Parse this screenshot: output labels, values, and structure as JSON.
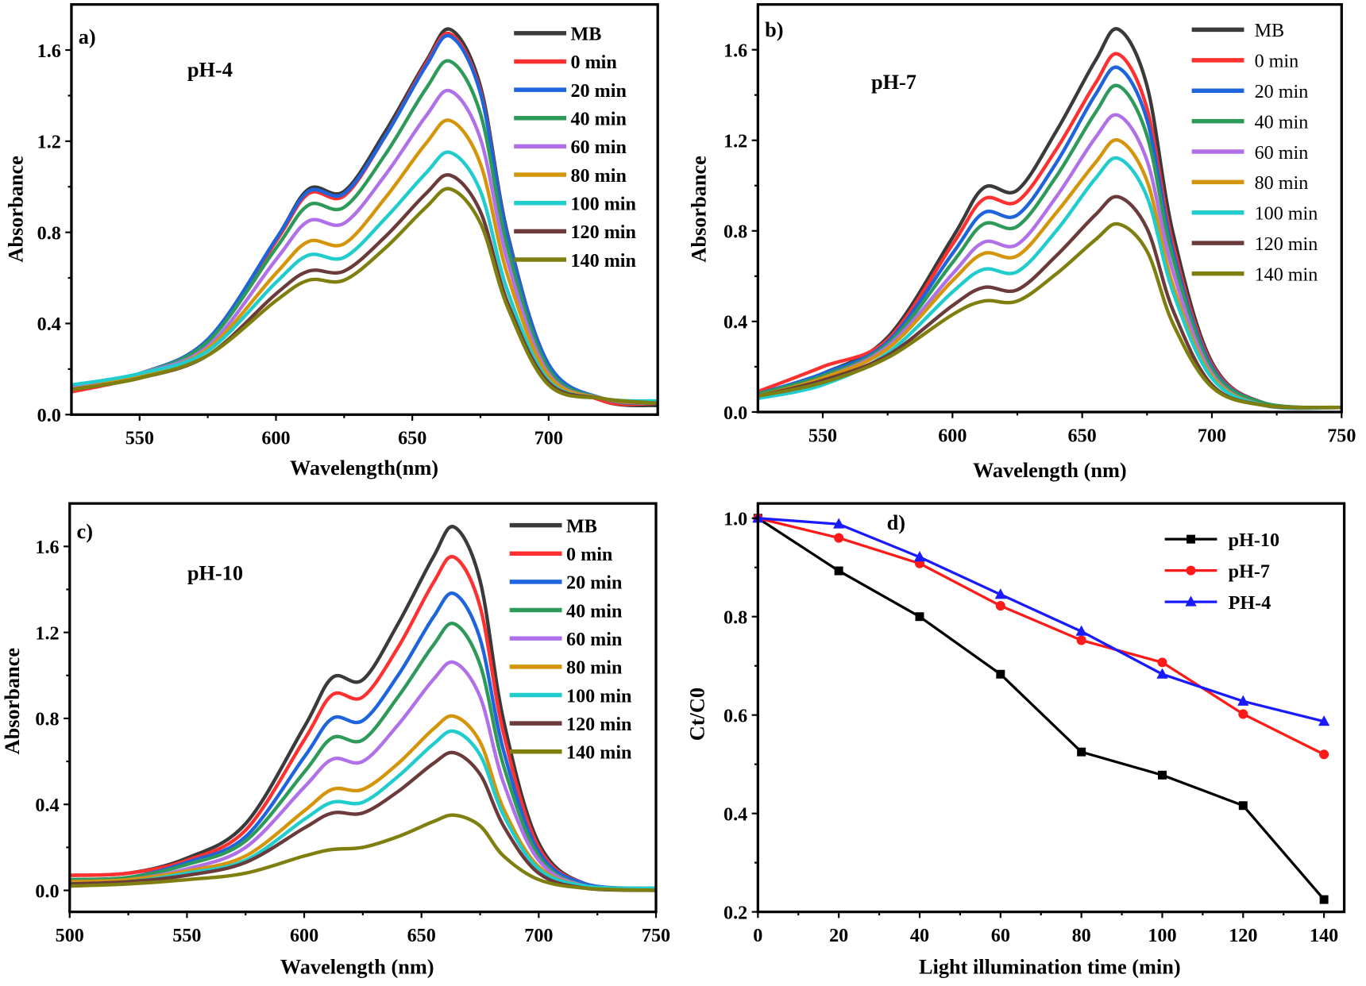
{
  "chart_data": [
    {
      "type": "line",
      "panel_label": "a)",
      "annotation": "pH-4",
      "xlabel": "Wavelength(nm)",
      "ylabel": "Absorbance",
      "xlim": [
        525,
        740
      ],
      "ylim": [
        0,
        1.8
      ],
      "xticks": [
        550,
        600,
        650,
        700
      ],
      "yticks": [
        0.0,
        0.4,
        0.8,
        1.2,
        1.6
      ],
      "ytick_labels": [
        "0.0",
        "0.4",
        "0.8",
        "1.2",
        "1.6"
      ],
      "legend": "top-right",
      "x": [
        525,
        550,
        575,
        600,
        612,
        625,
        640,
        655,
        664,
        675,
        685,
        700,
        720,
        740
      ],
      "series": [
        {
          "name": "MB",
          "color": "#3a3a3a",
          "values": [
            0.12,
            0.18,
            0.33,
            0.77,
            0.99,
            0.98,
            1.24,
            1.55,
            1.69,
            1.44,
            0.79,
            0.22,
            0.06,
            0.04
          ]
        },
        {
          "name": "0 min",
          "color": "#ff3030",
          "values": [
            0.1,
            0.17,
            0.32,
            0.76,
            0.97,
            0.96,
            1.22,
            1.54,
            1.67,
            1.42,
            0.78,
            0.22,
            0.06,
            0.05
          ]
        },
        {
          "name": "20 min",
          "color": "#1e64dc",
          "values": [
            0.12,
            0.18,
            0.33,
            0.77,
            0.98,
            0.97,
            1.22,
            1.53,
            1.66,
            1.41,
            0.78,
            0.22,
            0.07,
            0.05
          ]
        },
        {
          "name": "40 min",
          "color": "#2e9a5a",
          "values": [
            0.12,
            0.18,
            0.32,
            0.73,
            0.92,
            0.91,
            1.14,
            1.43,
            1.55,
            1.32,
            0.73,
            0.2,
            0.07,
            0.05
          ]
        },
        {
          "name": "60 min",
          "color": "#b070e8",
          "values": [
            0.12,
            0.18,
            0.3,
            0.68,
            0.85,
            0.84,
            1.05,
            1.31,
            1.42,
            1.21,
            0.67,
            0.18,
            0.07,
            0.05
          ]
        },
        {
          "name": "80 min",
          "color": "#d4950a",
          "values": [
            0.11,
            0.17,
            0.29,
            0.62,
            0.76,
            0.75,
            0.95,
            1.19,
            1.29,
            1.1,
            0.61,
            0.17,
            0.07,
            0.05
          ]
        },
        {
          "name": "100 min",
          "color": "#20cccc",
          "values": [
            0.13,
            0.18,
            0.28,
            0.58,
            0.7,
            0.69,
            0.86,
            1.06,
            1.15,
            0.98,
            0.54,
            0.15,
            0.07,
            0.06
          ]
        },
        {
          "name": "120 min",
          "color": "#6b3a3a",
          "values": [
            0.11,
            0.16,
            0.26,
            0.53,
            0.63,
            0.63,
            0.78,
            0.97,
            1.05,
            0.89,
            0.49,
            0.14,
            0.07,
            0.05
          ]
        },
        {
          "name": "140 min",
          "color": "#7f7f10",
          "values": [
            0.11,
            0.16,
            0.26,
            0.5,
            0.59,
            0.59,
            0.73,
            0.91,
            0.99,
            0.84,
            0.47,
            0.13,
            0.07,
            0.05
          ]
        }
      ]
    },
    {
      "type": "line",
      "panel_label": "b)",
      "annotation": "pH-7",
      "xlabel": "Wavelength (nm)",
      "ylabel": "Absorbance",
      "xlim": [
        525,
        750
      ],
      "ylim": [
        0,
        1.8
      ],
      "xticks": [
        550,
        600,
        650,
        700,
        750
      ],
      "yticks": [
        0.0,
        0.4,
        0.8,
        1.2,
        1.6
      ],
      "ytick_labels": [
        "0.0",
        "0.4",
        "0.8",
        "1.2",
        "1.6"
      ],
      "legend": "top-right",
      "x": [
        525,
        550,
        575,
        600,
        612,
        625,
        640,
        655,
        664,
        675,
        685,
        700,
        720,
        750
      ],
      "series": [
        {
          "name": "MB",
          "color": "#3a3a3a",
          "values": [
            0.08,
            0.17,
            0.33,
            0.77,
            0.99,
            0.98,
            1.24,
            1.55,
            1.69,
            1.44,
            0.79,
            0.22,
            0.04,
            0.02
          ]
        },
        {
          "name": "0 min",
          "color": "#ff3030",
          "values": [
            0.09,
            0.2,
            0.32,
            0.74,
            0.94,
            0.93,
            1.16,
            1.45,
            1.58,
            1.34,
            0.74,
            0.21,
            0.04,
            0.02
          ]
        },
        {
          "name": "20 min",
          "color": "#1e64dc",
          "values": [
            0.08,
            0.17,
            0.31,
            0.7,
            0.88,
            0.87,
            1.1,
            1.4,
            1.52,
            1.29,
            0.71,
            0.2,
            0.04,
            0.02
          ]
        },
        {
          "name": "40 min",
          "color": "#2e9a5a",
          "values": [
            0.08,
            0.16,
            0.3,
            0.66,
            0.83,
            0.82,
            1.04,
            1.32,
            1.44,
            1.22,
            0.68,
            0.19,
            0.04,
            0.02
          ]
        },
        {
          "name": "60 min",
          "color": "#b070e8",
          "values": [
            0.07,
            0.15,
            0.29,
            0.61,
            0.75,
            0.74,
            0.95,
            1.21,
            1.31,
            1.11,
            0.62,
            0.17,
            0.03,
            0.02
          ]
        },
        {
          "name": "80  min",
          "color": "#d4950a",
          "values": [
            0.07,
            0.15,
            0.28,
            0.58,
            0.7,
            0.69,
            0.88,
            1.1,
            1.2,
            1.02,
            0.56,
            0.16,
            0.03,
            0.02
          ]
        },
        {
          "name": "100 min",
          "color": "#20cccc",
          "values": [
            0.06,
            0.12,
            0.26,
            0.53,
            0.63,
            0.62,
            0.8,
            1.03,
            1.12,
            0.95,
            0.53,
            0.15,
            0.03,
            0.02
          ]
        },
        {
          "name": "120 min",
          "color": "#6b3a3a",
          "values": [
            0.07,
            0.14,
            0.25,
            0.47,
            0.55,
            0.54,
            0.69,
            0.87,
            0.95,
            0.81,
            0.45,
            0.12,
            0.03,
            0.02
          ]
        },
        {
          "name": "140 min",
          "color": "#7f7f10",
          "values": [
            0.07,
            0.13,
            0.24,
            0.43,
            0.49,
            0.49,
            0.61,
            0.76,
            0.83,
            0.71,
            0.39,
            0.11,
            0.03,
            0.02
          ]
        }
      ]
    },
    {
      "type": "line",
      "panel_label": "c)",
      "annotation": "pH-10",
      "xlabel": "Wavelength (nm)",
      "ylabel": "Absorbance",
      "xlim": [
        500,
        750
      ],
      "ylim": [
        -0.1,
        1.8
      ],
      "xticks": [
        500,
        550,
        600,
        650,
        700,
        750
      ],
      "yticks": [
        0.0,
        0.4,
        0.8,
        1.2,
        1.6
      ],
      "ytick_labels": [
        "0.0",
        "0.4",
        "0.8",
        "1.2",
        "1.6"
      ],
      "legend": "top-right",
      "x": [
        500,
        525,
        550,
        575,
        600,
        612,
        625,
        640,
        655,
        664,
        675,
        685,
        700,
        720,
        750
      ],
      "series": [
        {
          "name": "MB",
          "color": "#3a3a3a",
          "values": [
            0.07,
            0.08,
            0.15,
            0.31,
            0.76,
            0.99,
            0.98,
            1.24,
            1.55,
            1.69,
            1.44,
            0.79,
            0.22,
            0.03,
            0.01
          ]
        },
        {
          "name": "0 min",
          "color": "#ff3030",
          "values": [
            0.07,
            0.08,
            0.14,
            0.28,
            0.7,
            0.91,
            0.9,
            1.13,
            1.43,
            1.55,
            1.32,
            0.73,
            0.2,
            0.03,
            0.01
          ]
        },
        {
          "name": "20 min",
          "color": "#1e64dc",
          "values": [
            0.05,
            0.06,
            0.13,
            0.25,
            0.62,
            0.8,
            0.79,
            1.0,
            1.27,
            1.38,
            1.17,
            0.65,
            0.18,
            0.03,
            0.01
          ]
        },
        {
          "name": "40 min",
          "color": "#2e9a5a",
          "values": [
            0.05,
            0.06,
            0.12,
            0.23,
            0.55,
            0.71,
            0.7,
            0.9,
            1.14,
            1.24,
            1.05,
            0.58,
            0.16,
            0.02,
            0.01
          ]
        },
        {
          "name": "60 min",
          "color": "#b070e8",
          "values": [
            0.04,
            0.05,
            0.1,
            0.2,
            0.48,
            0.61,
            0.6,
            0.77,
            0.98,
            1.06,
            0.9,
            0.5,
            0.14,
            0.02,
            0.01
          ]
        },
        {
          "name": "80 min",
          "color": "#d4950a",
          "values": [
            0.04,
            0.05,
            0.09,
            0.16,
            0.37,
            0.47,
            0.47,
            0.59,
            0.75,
            0.81,
            0.69,
            0.38,
            0.11,
            0.02,
            0.01
          ]
        },
        {
          "name": "100 min",
          "color": "#20cccc",
          "values": [
            0.03,
            0.04,
            0.08,
            0.14,
            0.33,
            0.41,
            0.41,
            0.53,
            0.68,
            0.74,
            0.63,
            0.35,
            0.1,
            0.02,
            0.01
          ]
        },
        {
          "name": "120 min",
          "color": "#6b3a3a",
          "values": [
            0.03,
            0.04,
            0.07,
            0.13,
            0.29,
            0.36,
            0.36,
            0.46,
            0.59,
            0.64,
            0.54,
            0.3,
            0.08,
            0.01,
            0.0
          ]
        },
        {
          "name": "140 min",
          "color": "#7f7f10",
          "values": [
            0.02,
            0.03,
            0.05,
            0.08,
            0.16,
            0.19,
            0.2,
            0.25,
            0.32,
            0.35,
            0.3,
            0.16,
            0.05,
            0.01,
            0.0
          ]
        }
      ]
    },
    {
      "type": "line",
      "panel_label": "d)",
      "xlabel": "Light illumination time (min)",
      "ylabel": "Ct/C0",
      "xlim": [
        0,
        145
      ],
      "ylim": [
        0.2,
        1.03
      ],
      "xticks": [
        0,
        20,
        40,
        60,
        80,
        100,
        120,
        140
      ],
      "yticks": [
        0.2,
        0.4,
        0.6,
        0.8,
        1.0
      ],
      "ytick_labels": [
        "0.2",
        "0.4",
        "0.6",
        "0.8",
        "1.0"
      ],
      "legend": "top-right",
      "x": [
        0,
        20,
        40,
        60,
        80,
        100,
        120,
        140
      ],
      "series": [
        {
          "name": "pH-10",
          "color": "#000000",
          "marker": "square",
          "values": [
            1.0,
            0.893,
            0.8,
            0.683,
            0.525,
            0.478,
            0.416,
            0.225
          ]
        },
        {
          "name": "pH-7",
          "color": "#ff1a1a",
          "marker": "circle",
          "values": [
            1.0,
            0.96,
            0.908,
            0.822,
            0.752,
            0.707,
            0.602,
            0.52
          ]
        },
        {
          "name": "PH-4",
          "color": "#1a1aff",
          "marker": "triangle",
          "values": [
            1.0,
            0.988,
            0.921,
            0.845,
            0.77,
            0.683,
            0.628,
            0.587
          ]
        }
      ]
    }
  ]
}
